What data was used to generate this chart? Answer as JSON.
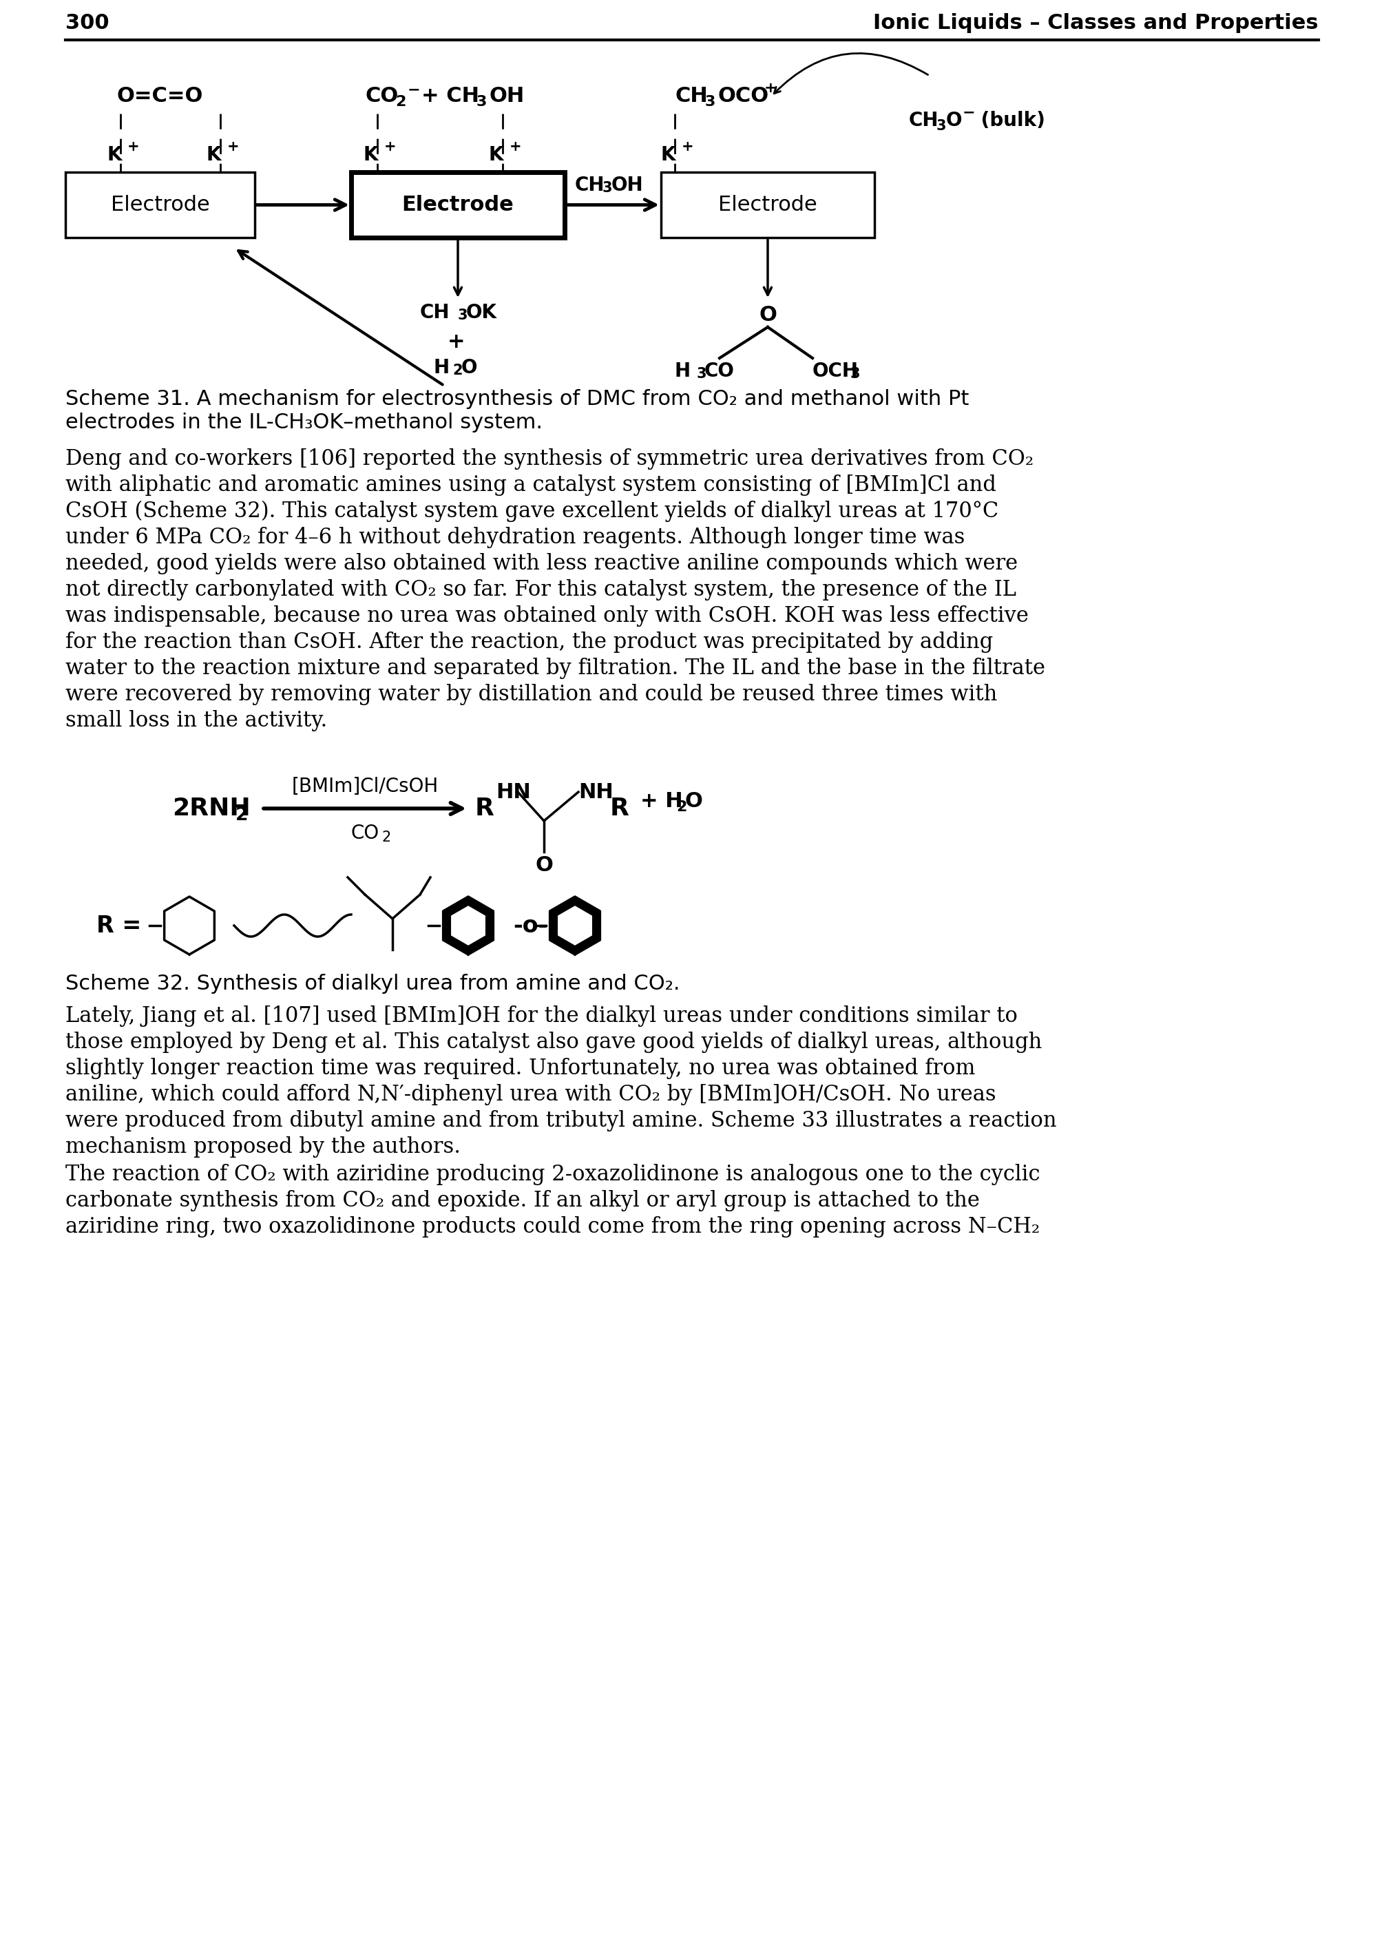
{
  "page_number": "300",
  "header_title": "Ionic Liquids – Classes and Properties",
  "scheme31_cap1": "Scheme 31. A mechanism for electrosynthesis of DMC from CO₂ and methanol with Pt",
  "scheme31_cap2": "electrodes in the IL-CH₃OK–methanol system.",
  "para1": [
    "Deng and co-workers [106] reported the synthesis of symmetric urea derivatives from CO₂",
    "with aliphatic and aromatic amines using a catalyst system consisting of [BMIm]Cl and",
    "CsOH (Scheme 32). This catalyst system gave excellent yields of dialkyl ureas at 170°C",
    "under 6 MPa CO₂ for 4–6 h without dehydration reagents. Although longer time was",
    "needed, good yields were also obtained with less reactive aniline compounds which were",
    "not directly carbonylated with CO₂ so far. For this catalyst system, the presence of the IL",
    "was indispensable, because no urea was obtained only with CsOH. KOH was less effective",
    "for the reaction than CsOH. After the reaction, the product was precipitated by adding",
    "water to the reaction mixture and separated by filtration. The IL and the base in the filtrate",
    "were recovered by removing water by distillation and could be reused three times with",
    "small loss in the activity."
  ],
  "scheme32_cap": "Scheme 32. Synthesis of dialkyl urea from amine and CO₂.",
  "para2": [
    "Lately, Jiang et al. [107] used [BMIm]OH for the dialkyl ureas under conditions similar to",
    "those employed by Deng et al. This catalyst also gave good yields of dialkyl ureas, although",
    "slightly longer reaction time was required. Unfortunately, no urea was obtained from",
    "aniline, which could afford N,N′-diphenyl urea with CO₂ by [BMIm]OH/CsOH. No ureas",
    "were produced from dibutyl amine and from tributyl amine. Scheme 33 illustrates a reaction",
    "mechanism proposed by the authors."
  ],
  "para3": [
    "The reaction of CO₂ with aziridine producing 2-oxazolidinone is analogous one to the cyclic",
    "carbonate synthesis from CO₂ and epoxide. If an alkyl or aryl group is attached to the",
    "aziridine ring, two oxazolidinone products could come from the ring opening across N–CH₂"
  ],
  "bg_color": "#ffffff"
}
